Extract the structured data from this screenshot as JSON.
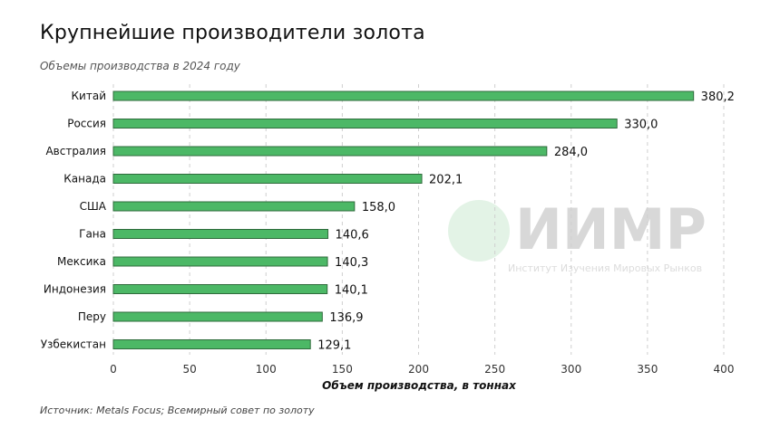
{
  "header": {
    "title": "Крупнейшие производители золота",
    "subtitle": "Объемы производства в 2024 году"
  },
  "footer": {
    "source": "Источник: Metals Focus; Всемирный совет по золоту"
  },
  "watermark": {
    "logo_text": "ИИМР",
    "tagline": "Институт Изучения Мировых Рынков"
  },
  "chart_data": {
    "type": "bar",
    "orientation": "horizontal",
    "categories": [
      "Китай",
      "Россия",
      "Австралия",
      "Канада",
      "США",
      "Гана",
      "Мексика",
      "Индонезия",
      "Перу",
      "Узбекистан"
    ],
    "values": [
      380.2,
      330.0,
      284.0,
      202.1,
      158.0,
      140.6,
      140.3,
      140.1,
      136.9,
      129.1
    ],
    "value_labels": [
      "380,2",
      "330,0",
      "284,0",
      "202,1",
      "158,0",
      "140,6",
      "140,3",
      "140,1",
      "136,9",
      "129,1"
    ],
    "xlabel": "Объем производства, в тоннах",
    "xlim": [
      0,
      400
    ],
    "xticks": [
      0,
      50,
      100,
      150,
      200,
      250,
      300,
      350,
      400
    ],
    "grid": "vertical dashed",
    "bar_color": "#4cb866",
    "bar_border": "#2f6b3c"
  }
}
